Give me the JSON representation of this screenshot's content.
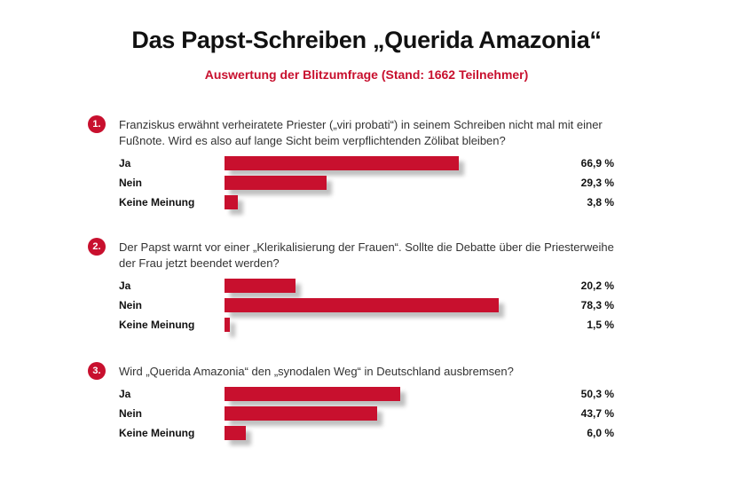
{
  "header": {
    "title": "Das Papst-Schreiben „Querida Amazonia“",
    "subtitle": "Auswertung der Blitzumfrage (Stand: 1662 Teilnehmer)"
  },
  "colors": {
    "accent": "#c8102e"
  },
  "chart_data": [
    {
      "type": "bar",
      "orientation": "horizontal",
      "number": "1.",
      "question": "Franziskus erwähnt verheiratete Priester („viri probati“) in seinem Schreiben nicht mal mit einer Fußnote. Wird es also auf lange Sicht beim verpflichtenden Zölibat bleiben?",
      "categories": [
        "Ja",
        "Nein",
        "Keine Meinung"
      ],
      "values": [
        66.9,
        29.3,
        3.8
      ],
      "value_labels": [
        "66,9 %",
        "29,3 %",
        "3,8 %"
      ],
      "xlim": [
        0,
        100
      ]
    },
    {
      "type": "bar",
      "orientation": "horizontal",
      "number": "2.",
      "question": "Der Papst warnt vor einer „Klerikalisierung der Frauen“. Sollte die Debatte über die Priesterweihe der Frau jetzt beendet werden?",
      "categories": [
        "Ja",
        "Nein",
        "Keine Meinung"
      ],
      "values": [
        20.2,
        78.3,
        1.5
      ],
      "value_labels": [
        "20,2 %",
        "78,3 %",
        "1,5 %"
      ],
      "xlim": [
        0,
        100
      ]
    },
    {
      "type": "bar",
      "orientation": "horizontal",
      "number": "3.",
      "question": "Wird „Querida Amazonia“ den „synodalen Weg“ in Deutschland ausbremsen?",
      "categories": [
        "Ja",
        "Nein",
        "Keine Meinung"
      ],
      "values": [
        50.3,
        43.7,
        6.0
      ],
      "value_labels": [
        "50,3 %",
        "43,7 %",
        "6,0 %"
      ],
      "xlim": [
        0,
        100
      ]
    }
  ]
}
